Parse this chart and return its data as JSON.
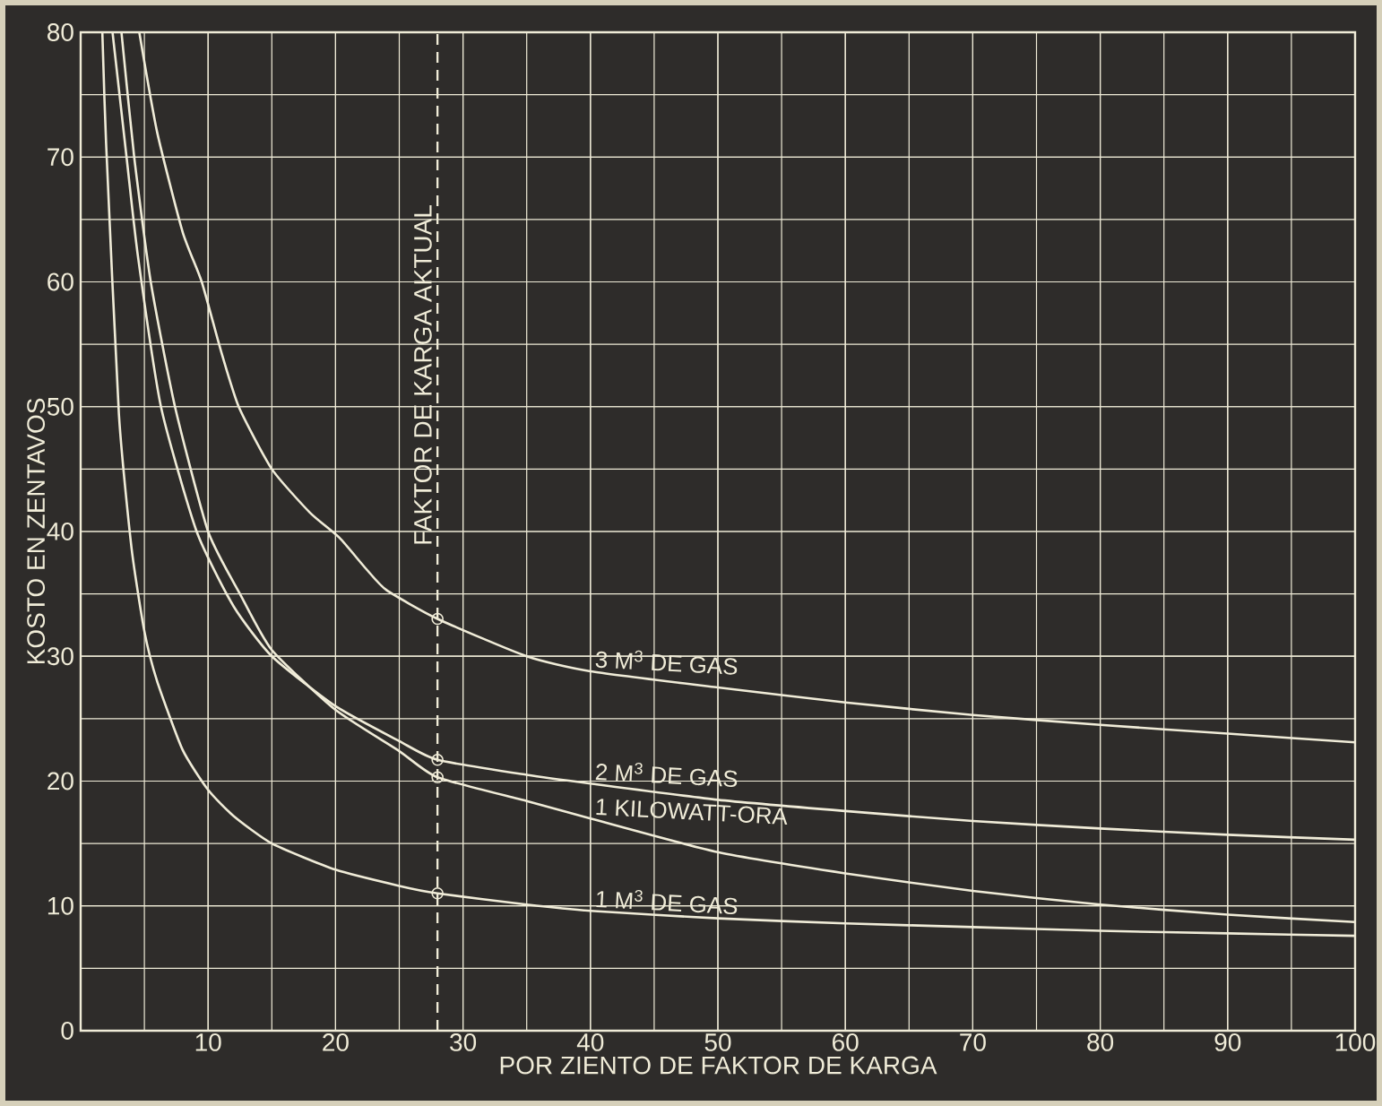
{
  "chart_data": {
    "type": "line",
    "xlabel": "POR ZIENTO DE FAKTOR DE KARGA",
    "ylabel": "KOSTO EN ZENTAVOS",
    "xlim": [
      0,
      100
    ],
    "ylim": [
      0,
      80
    ],
    "xticks": [
      10,
      20,
      30,
      40,
      50,
      60,
      70,
      80,
      90,
      100
    ],
    "yticks": [
      0,
      10,
      20,
      30,
      40,
      50,
      60,
      70,
      80
    ],
    "grid": true,
    "ref_lines": [
      {
        "axis": "x",
        "value": 28,
        "label": "FAKTOR DE KARGA AKTUAL",
        "line_style": "dashed",
        "color": "#f0ecd8"
      }
    ],
    "series": [
      {
        "name": "3 M$^{3}$ DE GAS",
        "color": "#f0ecd8",
        "x": [
          4.6,
          6,
          8,
          9.5,
          11,
          12.4,
          15,
          18,
          20.3,
          22.4,
          24,
          28,
          35,
          40,
          50,
          60,
          70,
          80,
          90,
          100
        ],
        "values": [
          80,
          72,
          64,
          60,
          54.5,
          50,
          45,
          41.5,
          39.5,
          37,
          35.3,
          33,
          30,
          28.8,
          27.5,
          26.3,
          25.3,
          24.5,
          23.8,
          23.1
        ]
      },
      {
        "name": "2 M$^{3}$ DE GAS",
        "color": "#f0ecd8",
        "x": [
          2.5,
          3.6,
          4.5,
          6.3,
          9.1,
          12,
          15,
          20,
          25,
          28,
          35,
          40,
          50,
          60,
          70,
          80,
          90,
          100
        ],
        "values": [
          80,
          70,
          62,
          50,
          40,
          34,
          30,
          26,
          23.2,
          21.7,
          20.5,
          19.8,
          18.5,
          17.6,
          16.8,
          16.2,
          15.7,
          15.3
        ]
      },
      {
        "name": "1 KILOWATT-ORA",
        "color": "#f0ecd8",
        "x": [
          3.2,
          4.2,
          5.5,
          7.4,
          10,
          12.5,
          15,
          20,
          25,
          28,
          35,
          40,
          50,
          60,
          70,
          80,
          90,
          100
        ],
        "values": [
          80,
          70,
          60,
          50,
          40,
          35,
          30.5,
          25.7,
          22.4,
          20.3,
          18.4,
          17,
          14.3,
          12.6,
          11.2,
          10.1,
          9.3,
          8.7
        ]
      },
      {
        "name": "1 M$^{3}$ DE GAS",
        "color": "#f0ecd8",
        "x": [
          1.7,
          2,
          3,
          4,
          5,
          6,
          8,
          10,
          12,
          15,
          20,
          25,
          28,
          35,
          40,
          50,
          60,
          70,
          80,
          90,
          100
        ],
        "values": [
          80,
          71,
          49.4,
          38.6,
          32,
          28,
          22.5,
          19.3,
          17.2,
          15,
          12.9,
          11.6,
          11,
          10.1,
          9.6,
          9,
          8.6,
          8.3,
          8,
          7.8,
          7.6
        ]
      },
      {
        "type": "scatter",
        "marker": "circle",
        "color": "#f0ecd8",
        "x": [
          28,
          28,
          28,
          28
        ],
        "values": [
          33,
          21.7,
          20.3,
          11
        ]
      }
    ]
  }
}
